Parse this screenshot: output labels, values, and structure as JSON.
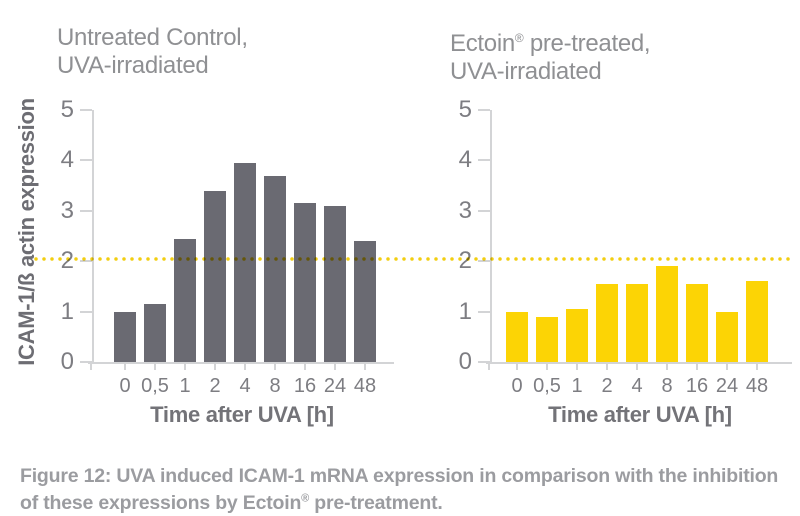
{
  "chart_data": [
    {
      "type": "bar",
      "title": "Untreated Control, UVA-irradiated",
      "title_lines": [
        "Untreated Control,",
        "UVA-irradiated"
      ],
      "ylabel": "ICAM-1/ß actin expression",
      "xlabel": "Time after UVA [h]",
      "categories": [
        "0",
        "0,5",
        "1",
        "2",
        "4",
        "8",
        "16",
        "24",
        "48"
      ],
      "values": [
        1.0,
        1.15,
        2.45,
        3.4,
        3.95,
        3.7,
        3.15,
        3.1,
        2.4
      ],
      "ylim": [
        0,
        5
      ],
      "yticks": [
        0,
        1,
        2,
        3,
        4,
        5
      ],
      "bar_color": "#6a6a72",
      "grid": false,
      "legend": "none",
      "reference_line": {
        "value": 2.05,
        "color": "#f2ce10",
        "style": "dotted"
      }
    },
    {
      "type": "bar",
      "title": "Ectoin® pre-treated, UVA-irradiated",
      "title_lines": [
        "Ectoin® pre-treated,",
        "UVA-irradiated"
      ],
      "ylabel": "ICAM-1/ß actin expression",
      "xlabel": "Time after UVA [h]",
      "categories": [
        "0",
        "0,5",
        "1",
        "2",
        "4",
        "8",
        "16",
        "24",
        "48"
      ],
      "values": [
        1.0,
        0.9,
        1.05,
        1.55,
        1.55,
        1.9,
        1.55,
        1.0,
        1.6
      ],
      "ylim": [
        0,
        5
      ],
      "yticks": [
        0,
        1,
        2,
        3,
        4,
        5
      ],
      "bar_color": "#fcd405",
      "grid": false,
      "legend": "none",
      "reference_line": {
        "value": 2.05,
        "color": "#f2ce10",
        "style": "dotted"
      }
    }
  ],
  "caption": {
    "line1": "Figure 12: UVA induced ICAM-1 mRNA expression in comparison with the inhibition",
    "line2": "of these expressions by Ectoin® pre-treatment."
  }
}
